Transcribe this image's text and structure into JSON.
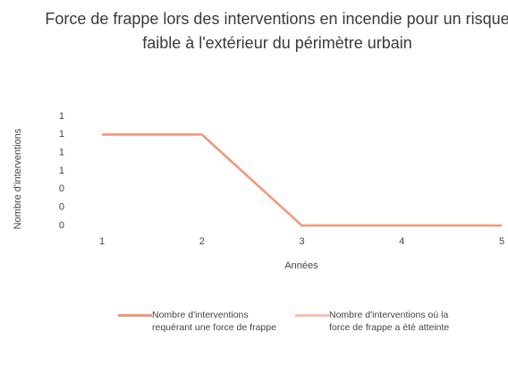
{
  "chart_data": {
    "type": "line",
    "title": "Force de frappe lors des interventions en incendie pour un risque faible à l'extérieur du périmètre urbain",
    "x_label": "Années",
    "y_label": "Nombre d'interventions",
    "categories": [
      "1",
      "2",
      "3",
      "4",
      "5"
    ],
    "series": [
      {
        "name": "Nombre d'interventions requérant une force de frappe",
        "color": "#f2977a",
        "values": [
          1,
          1,
          0,
          0,
          0
        ]
      },
      {
        "name": "Nombre d'interventions où la force de frappe a été atteinte",
        "color": "#f8c2ad",
        "values": [
          1,
          1,
          0,
          0,
          0
        ]
      }
    ],
    "ylim": [
      0,
      1.2
    ],
    "yticks": [
      0,
      {
        "value": 0.2,
        "label": "0"
      },
      {
        "value": 0.4,
        "label": "0"
      },
      {
        "value": 0.6,
        "label": "1"
      },
      {
        "value": 0.8,
        "label": "1"
      },
      1,
      {
        "value": 1.2,
        "label": "1"
      }
    ],
    "grid": false,
    "legend": "bottom"
  }
}
